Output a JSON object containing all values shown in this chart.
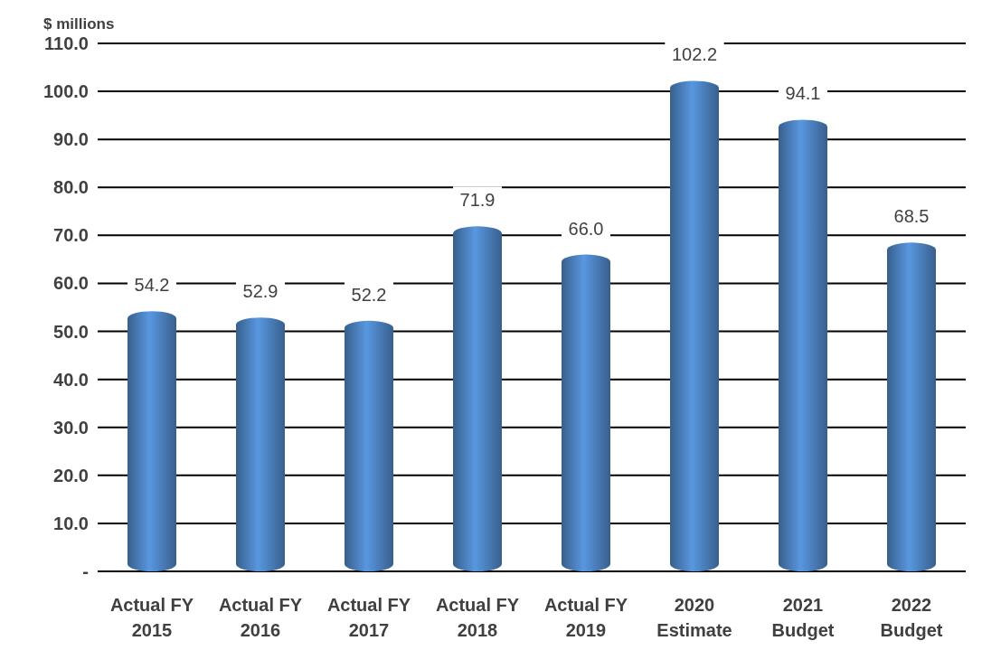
{
  "chart_data": {
    "type": "bar",
    "ylabel": "$ millions",
    "categories": [
      "Actual FY 2015",
      "Actual FY 2016",
      "Actual FY 2017",
      "Actual FY 2018",
      "Actual FY 2019",
      "2020 Estimate",
      "2021 Budget",
      "2022 Budget"
    ],
    "values": [
      54.2,
      52.9,
      52.2,
      71.9,
      66.0,
      102.2,
      94.1,
      68.5
    ],
    "value_labels": [
      "54.2",
      "52.9",
      "52.2",
      "71.9",
      "66.0",
      "102.2",
      "94.1",
      "68.5"
    ],
    "color": "#4a7ebb",
    "ylim": [
      0,
      110
    ],
    "yticks": [
      {
        "value": 0,
        "label": "-"
      },
      {
        "value": 10,
        "label": "10.0"
      },
      {
        "value": 20,
        "label": "20.0"
      },
      {
        "value": 30,
        "label": "30.0"
      },
      {
        "value": 40,
        "label": "40.0"
      },
      {
        "value": 50,
        "label": "50.0"
      },
      {
        "value": 60,
        "label": "60.0"
      },
      {
        "value": 70,
        "label": "70.0"
      },
      {
        "value": 80,
        "label": "80.0"
      },
      {
        "value": 90,
        "label": "90.0"
      },
      {
        "value": 100,
        "label": "100.0"
      },
      {
        "value": 110,
        "label": "110.0"
      }
    ],
    "grid": "y"
  }
}
